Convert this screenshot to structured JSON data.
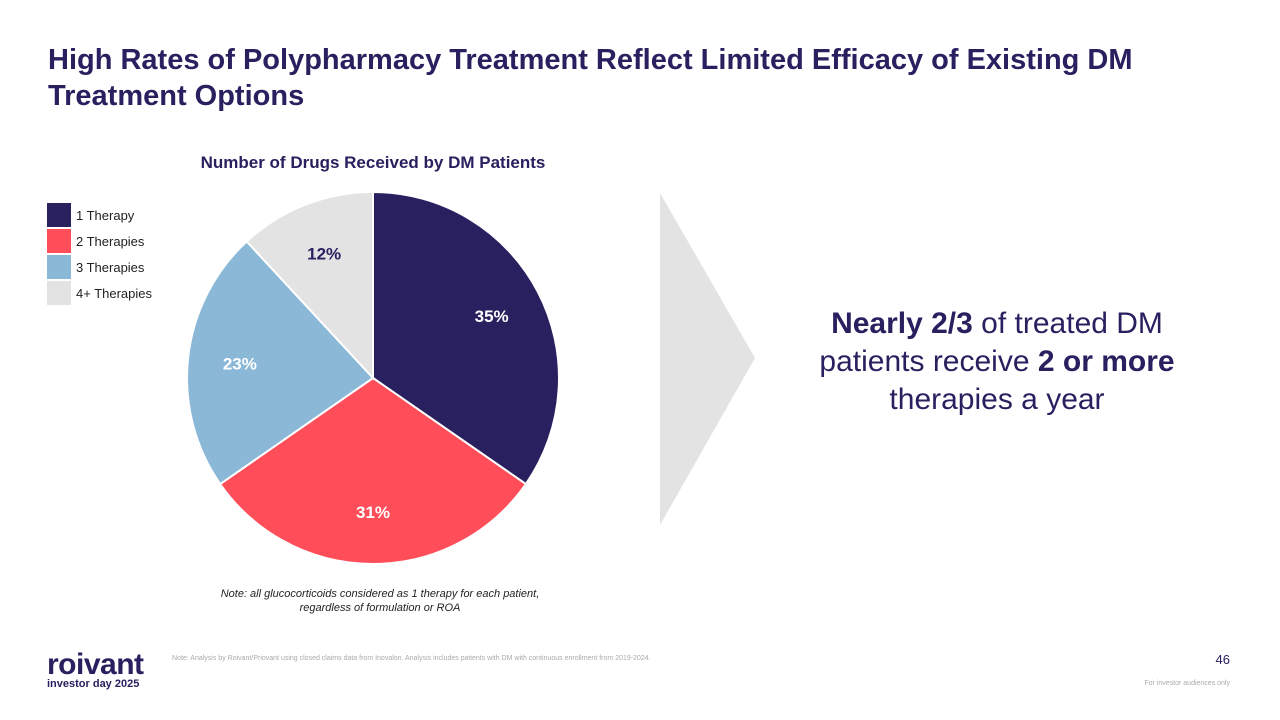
{
  "title": "High Rates of Polypharmacy Treatment Reflect Limited Efficacy of Existing DM Treatment Options",
  "chart_data": {
    "type": "pie",
    "title": "Number of Drugs Received by DM Patients",
    "categories": [
      "1 Therapy",
      "2 Therapies",
      "3 Therapies",
      "4+ Therapies"
    ],
    "values": [
      35,
      31,
      23,
      12
    ],
    "labels": [
      "35%",
      "31%",
      "23%",
      "12%"
    ],
    "colors": [
      "#29205f",
      "#ff4d5a",
      "#8cb8d8",
      "#e3e3e3"
    ],
    "label_colors": [
      "#ffffff",
      "#ffffff",
      "#ffffff",
      "#29205f"
    ],
    "legend_position": "top-left"
  },
  "note": "Note: all glucocorticoids considered as 1 therapy for each patient, regardless of formulation or ROA",
  "callout": {
    "part1_bold": "Nearly 2/3",
    "part2": " of treated DM patients receive ",
    "part3_bold": "2 or more",
    "part4": " therapies a year"
  },
  "logo": {
    "name": "roivant",
    "subtitle": "investor day 2025"
  },
  "footnote": "Note: Analysis by Roivant/Priovant using closed claims data from Inovalon.  Analysis includes patients with DM with continuous enrollment from 2019-2024.",
  "page_number": "46",
  "disclaimer": "For investor audiences only"
}
